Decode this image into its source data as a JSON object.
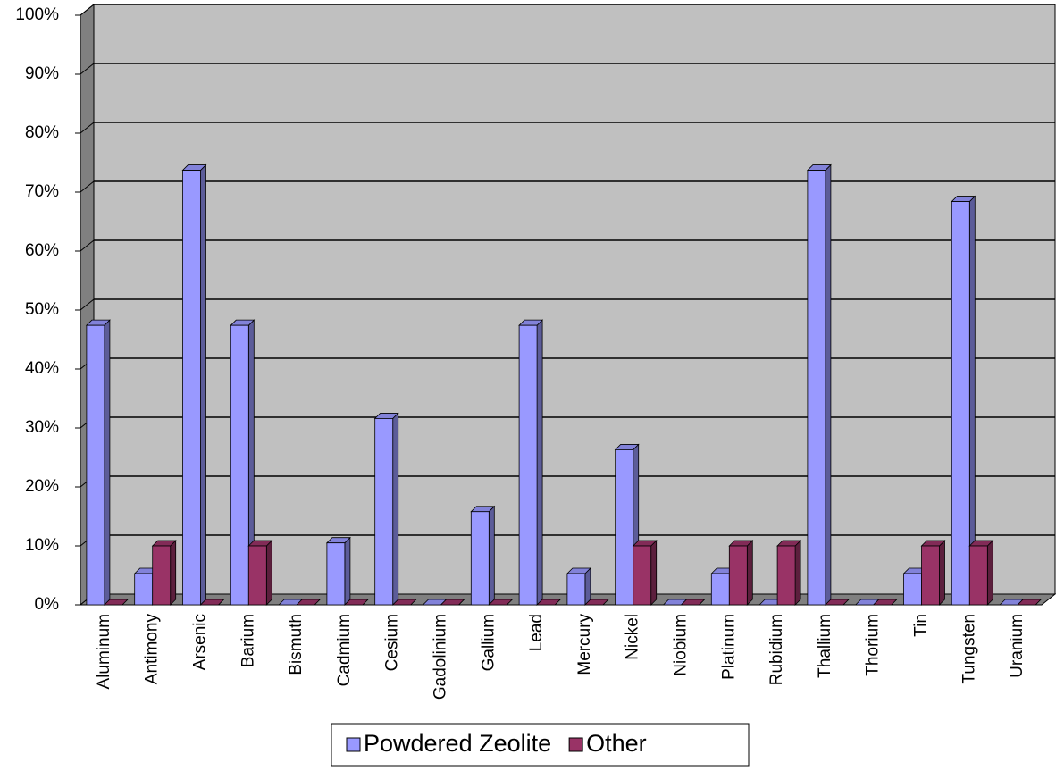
{
  "chart_data": {
    "type": "bar3d",
    "categories": [
      "Aluminum",
      "Antimony",
      "Arsenic",
      "Barium",
      "Bismuth",
      "Cadmium",
      "Cesium",
      "Gadolinium",
      "Gallium",
      "Lead",
      "Mercury",
      "Nickel",
      "Niobium",
      "Platinum",
      "Rubidium",
      "Thallium",
      "Thorium",
      "Tin",
      "Tungsten",
      "Uranium"
    ],
    "series": [
      {
        "name": "Powdered Zeolite",
        "color": "#9999ff",
        "values": [
          47.4,
          5.3,
          73.7,
          47.4,
          0,
          10.5,
          31.6,
          0,
          15.8,
          47.4,
          5.3,
          26.3,
          0,
          5.3,
          0,
          73.7,
          0,
          5.3,
          68.4,
          0
        ]
      },
      {
        "name": "Other",
        "color": "#993366",
        "values": [
          0,
          10,
          0,
          10,
          0,
          0,
          0,
          0,
          0,
          0,
          0,
          10,
          0,
          10,
          10,
          0,
          0,
          10,
          10,
          0
        ]
      }
    ],
    "ylim": [
      0,
      100
    ],
    "yticks": [
      {
        "value": 0,
        "label": "0%"
      },
      {
        "value": 10,
        "label": "10%"
      },
      {
        "value": 20,
        "label": "20%"
      },
      {
        "value": 30,
        "label": "30%"
      },
      {
        "value": 40,
        "label": "40%"
      },
      {
        "value": 50,
        "label": "50%"
      },
      {
        "value": 60,
        "label": "60%"
      },
      {
        "value": 70,
        "label": "70%"
      },
      {
        "value": 80,
        "label": "80%"
      },
      {
        "value": 90,
        "label": "90%"
      },
      {
        "value": 100,
        "label": "100%"
      }
    ],
    "grid": true,
    "legend": "bottom"
  }
}
